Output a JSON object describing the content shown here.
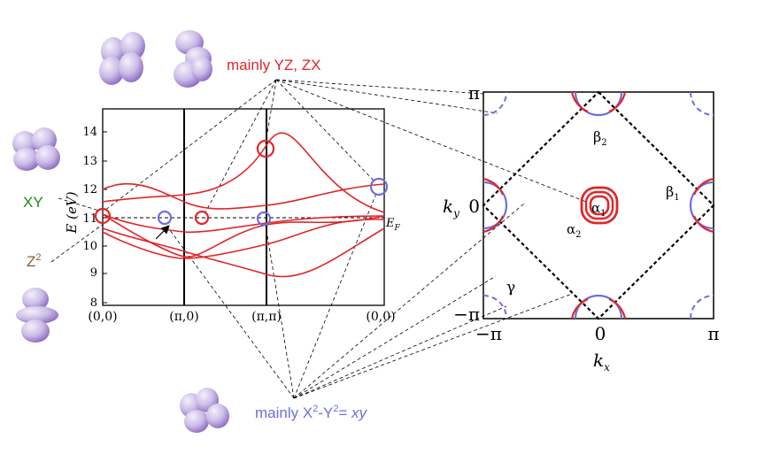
{
  "colors": {
    "red": "#e0262a",
    "blue": "#6b6fe0",
    "green": "#1a8a1a",
    "brown": "#8b5a2b",
    "black": "#000000",
    "orbital_light": "#d8d0ee",
    "orbital_dark": "#9b78c8"
  },
  "labels": {
    "yz_zx": "mainly YZ, ZX",
    "xy": "XY",
    "z2_base": "Z",
    "z2_sup": "2",
    "x2y2_prefix": "mainly X",
    "x2y2_sup1": "2",
    "x2y2_mid": "-Y",
    "x2y2_sup2": "2",
    "x2y2_eq": "= ",
    "x2y2_xy": "xy"
  },
  "band_plot": {
    "ylabel": "E (eV)",
    "fermi_label": "E",
    "fermi_sub": "F",
    "yticks": [
      "8",
      "9",
      "10",
      "11",
      "12",
      "13",
      "14"
    ],
    "xticks": [
      "(0,0)",
      "(π,0)",
      "(π,π)",
      "(0,0)"
    ]
  },
  "fermi_surface": {
    "xlabel": "k",
    "xlabel_sub": "x",
    "ylabel": "k",
    "ylabel_sub": "y",
    "xticks": [
      "−π",
      "0",
      "π"
    ],
    "yticks": [
      "π",
      "0",
      "−π"
    ],
    "pocket_labels": {
      "alpha1": "α",
      "alpha1_sub": "1",
      "alpha2": "α",
      "alpha2_sub": "2",
      "beta1": "β",
      "beta1_sub": "1",
      "beta2": "β",
      "beta2_sub": "2",
      "gamma": "γ"
    }
  }
}
